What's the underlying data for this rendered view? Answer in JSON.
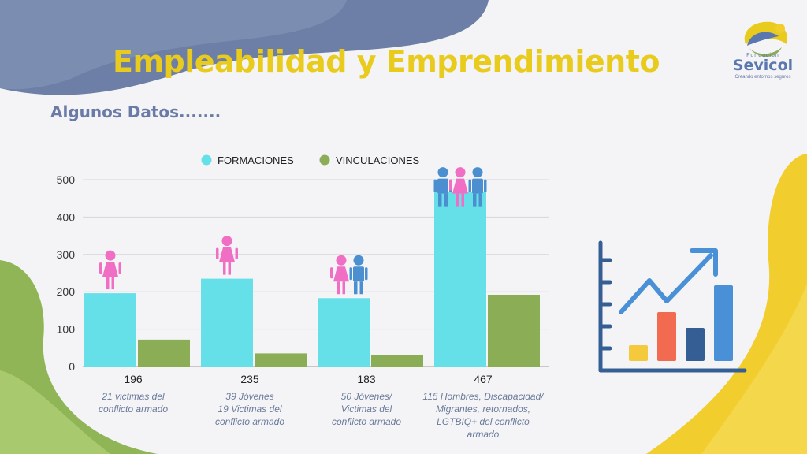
{
  "header": {
    "title": "Empleabilidad y Emprendimiento",
    "subtitle": "Algunos Datos......."
  },
  "logo": {
    "top_text": "Fundación",
    "word": "Sevicol",
    "tagline": "Creando entornos seguros"
  },
  "colors": {
    "title": "#e8cb1c",
    "subtitle": "#6b7ba8",
    "formaciones": "#66e0e8",
    "vinculaciones": "#8aad55",
    "female_icon": "#f06fc4",
    "male_icon": "#4b8fd1",
    "note_text": "#6a7a9a"
  },
  "chart_data": {
    "type": "bar",
    "categories": [
      "196",
      "235",
      "183",
      "467"
    ],
    "series": [
      {
        "name": "FORMACIONES",
        "values": [
          196,
          235,
          183,
          467
        ]
      },
      {
        "name": "VINCULACIONES",
        "values": [
          72,
          35,
          31,
          192
        ]
      }
    ],
    "ylim": [
      0,
      500
    ],
    "yticks": [
      0,
      100,
      200,
      300,
      400,
      500
    ],
    "grid": true,
    "legend": "top",
    "annotations": [
      "21 victimas del\nconflicto armado",
      "39 Jóvenes\n19 Victimas del\nconflicto armado",
      "50 Jóvenes/\nVictimas del\nconflicto armado",
      "115 Hombres, Discapacidad/\nMigrantes, retornados,\nLGTBIQ+ del conflicto\narmado"
    ],
    "icons": [
      [
        "female-icon"
      ],
      [
        "female-icon"
      ],
      [
        "female-icon",
        "male-icon"
      ],
      [
        "male-icon",
        "female-icon",
        "male-icon"
      ]
    ]
  },
  "decor": {
    "growth_chart_icon": "bar-chart-with-rising-arrow-icon",
    "growth_bar_colors": [
      "#f5c93c",
      "#f26a4f",
      "#355f94",
      "#4a90d6"
    ]
  }
}
